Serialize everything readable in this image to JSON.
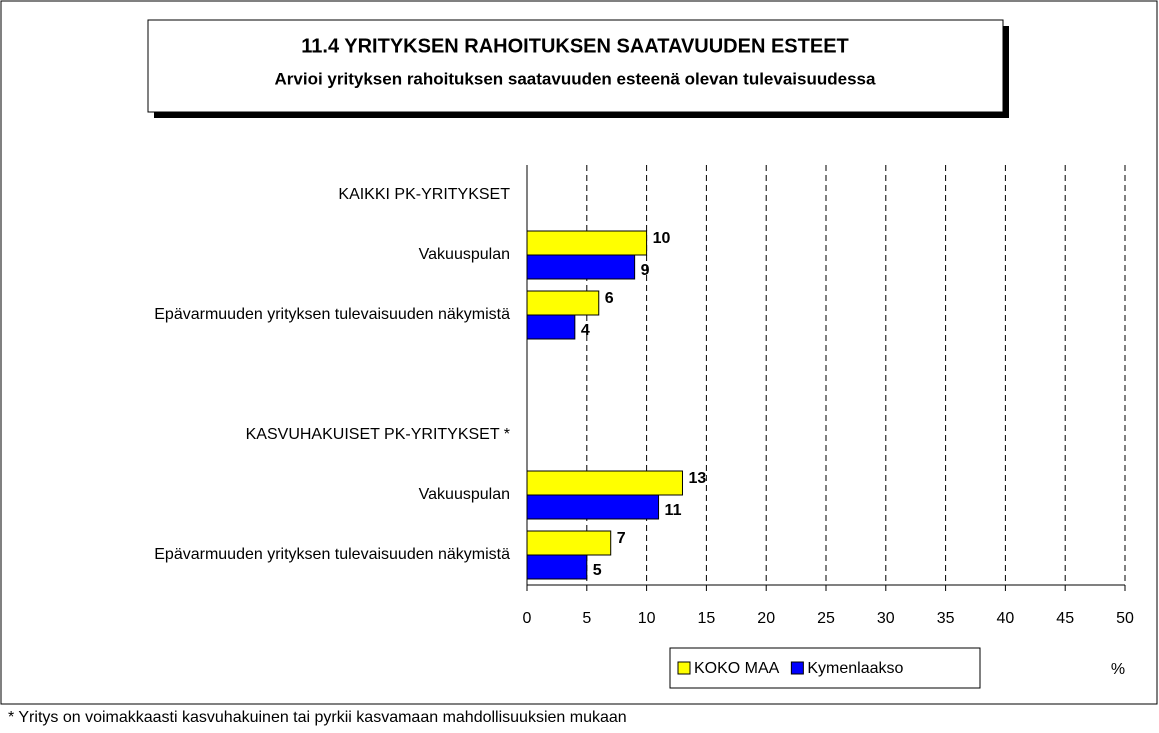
{
  "chart_data": {
    "type": "hbar",
    "title": "11.4 YRITYKSEN RAHOITUKSEN SAATAVUUDEN ESTEET",
    "subtitle": "Arvioi yrityksen rahoituksen saatavuuden esteenä olevan tulevaisuudessa",
    "categories": [
      "KAIKKI PK-YRITYKSET",
      "Vakuuspulan",
      "Epävarmuuden yrityksen tulevaisuuden näkymistä",
      null,
      "KASVUHAKUISET PK-YRITYKSET *",
      "Vakuuspulan",
      "Epävarmuuden yrityksen tulevaisuuden näkymistä"
    ],
    "series": [
      {
        "name": "KOKO MAA",
        "color": "#ffff00",
        "values": [
          null,
          10,
          6,
          null,
          null,
          13,
          7
        ]
      },
      {
        "name": "Kymenlaakso",
        "color": "#0000ff",
        "values": [
          null,
          9,
          4,
          null,
          null,
          11,
          5
        ]
      }
    ],
    "xlim": [
      0,
      50
    ],
    "xticks": [
      0,
      5,
      10,
      15,
      20,
      25,
      30,
      35,
      40,
      45,
      50
    ],
    "x_label": "%",
    "grid": true,
    "legend": "bottom",
    "footnote": "* Yritys on voimakkaasti kasvuhakuinen tai pyrkii kasvamaan mahdollisuuksien mukaan"
  }
}
